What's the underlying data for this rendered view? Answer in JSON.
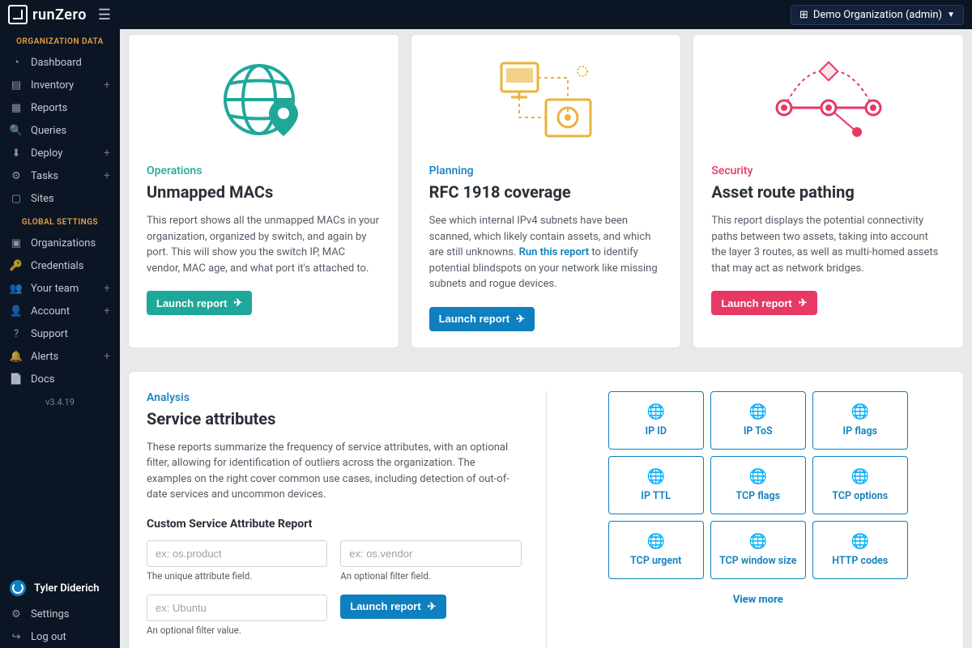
{
  "topbar": {
    "brand": "runZero",
    "org_label": "Demo Organization (admin)"
  },
  "sidebar": {
    "section1_label": "ORGANIZATION DATA",
    "section2_label": "GLOBAL SETTINGS",
    "items1": [
      {
        "label": "Dashboard",
        "plus": false
      },
      {
        "label": "Inventory",
        "plus": true
      },
      {
        "label": "Reports",
        "plus": false
      },
      {
        "label": "Queries",
        "plus": false
      },
      {
        "label": "Deploy",
        "plus": true
      },
      {
        "label": "Tasks",
        "plus": true
      },
      {
        "label": "Sites",
        "plus": false
      }
    ],
    "items2": [
      {
        "label": "Organizations",
        "plus": false
      },
      {
        "label": "Credentials",
        "plus": false
      },
      {
        "label": "Your team",
        "plus": true
      },
      {
        "label": "Account",
        "plus": true
      },
      {
        "label": "Support",
        "plus": false
      },
      {
        "label": "Alerts",
        "plus": true
      },
      {
        "label": "Docs",
        "plus": false
      }
    ],
    "version": "v3.4.19",
    "user_name": "Tyler Diderich",
    "settings": "Settings",
    "logout": "Log out"
  },
  "cards": [
    {
      "category": "Operations",
      "title": "Unmapped MACs",
      "desc": "This report shows all the unmapped MACs in your organization, organized by switch, and again by port. This will show you the switch IP, MAC vendor, MAC age, and what port it's attached to.",
      "btn": "Launch report",
      "cat_class": "cat-ops",
      "btn_class": "btn-ops"
    },
    {
      "category": "Planning",
      "title": "RFC 1918 coverage",
      "desc_pre": "See which internal IPv4 subnets have been scanned, which likely contain assets, and which are still unknowns. ",
      "desc_link": "Run this report",
      "desc_post": " to identify potential blindspots on your network like missing subnets and rogue devices.",
      "btn": "Launch report",
      "cat_class": "cat-plan",
      "btn_class": "btn-plan"
    },
    {
      "category": "Security",
      "title": "Asset route pathing",
      "desc": "This report displays the potential connectivity paths between two assets, taking into account the layer 3 routes, as well as multi-homed assets that may act as network bridges.",
      "btn": "Launch report",
      "cat_class": "cat-sec",
      "btn_class": "btn-sec"
    }
  ],
  "lower": {
    "category": "Analysis",
    "title": "Service attributes",
    "desc": "These reports summarize the frequency of service attributes, with an optional filter, allowing for identification of outliers across the organization. The examples on the right cover common use cases, including detection of out-of-date services and uncommon devices.",
    "subhead": "Custom Service Attribute Report",
    "input1_placeholder": "ex: os.product",
    "input1_helper": "The unique attribute field.",
    "input2_placeholder": "ex: os.vendor",
    "input2_helper": "An optional filter field.",
    "input3_placeholder": "ex: Ubuntu",
    "input3_helper": "An optional filter value.",
    "btn": "Launch report",
    "tiles": [
      "IP ID",
      "IP ToS",
      "IP flags",
      "IP TTL",
      "TCP flags",
      "TCP options",
      "TCP urgent",
      "TCP window size",
      "HTTP codes"
    ],
    "view_more": "View more"
  },
  "colors": {
    "ops": "#1fa89a",
    "plan": "#0e7fbf",
    "sec": "#e63964",
    "bg_dark": "#0c1524"
  }
}
